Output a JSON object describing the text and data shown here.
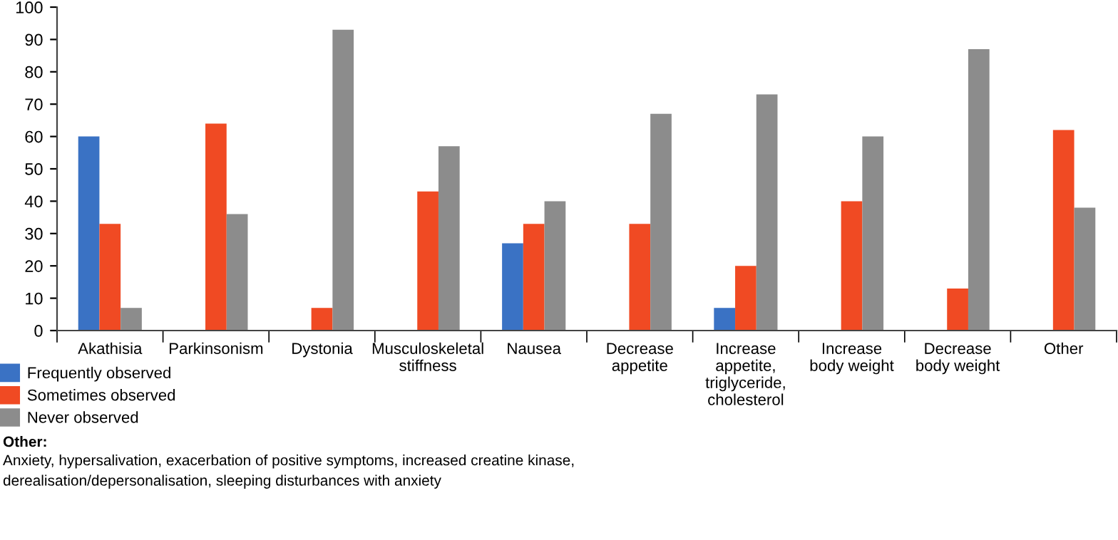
{
  "chart_data": {
    "type": "bar",
    "categories": [
      "Akathisia",
      "Parkinsonism",
      "Dystonia",
      "Musculoskeletal\nstiffness",
      "Nausea",
      "Decrease\nappetite",
      "Increase\nappetite,\ntriglyceride,\ncholesterol",
      "Increase\nbody weight",
      "Decrease\nbody weight",
      "Other"
    ],
    "series": [
      {
        "name": "Frequently observed",
        "color": "#3a72c4",
        "values": [
          60,
          null,
          null,
          null,
          27,
          null,
          7,
          null,
          null,
          null
        ]
      },
      {
        "name": "Sometimes observed",
        "color": "#f04a23",
        "values": [
          33,
          64,
          7,
          43,
          33,
          33,
          20,
          40,
          13,
          62
        ]
      },
      {
        "name": "Never observed",
        "color": "#8c8c8c",
        "values": [
          7,
          36,
          93,
          57,
          40,
          67,
          73,
          60,
          87,
          38
        ]
      }
    ],
    "ylim": [
      0,
      100
    ],
    "yticks": [
      0,
      10,
      20,
      30,
      40,
      50,
      60,
      70,
      80,
      90,
      100
    ],
    "grid": false,
    "legend": "bottom left",
    "annotations": [
      "Other:",
      "Anxiety, hypersalivation, exacerbation of positive symptoms, increased creatine kinase,\nderealisation/depersonalisation, sleeping disturbances with anxiety"
    ]
  }
}
